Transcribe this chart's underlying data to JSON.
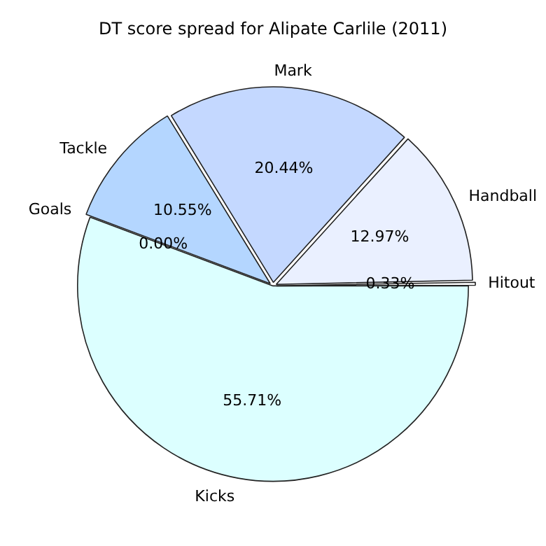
{
  "chart_data": {
    "type": "pie",
    "title": "DT score spread for Alipate Carlile (2011)",
    "categories": [
      "Kicks",
      "Goals",
      "Tackle",
      "Mark",
      "Handball",
      "Hitout"
    ],
    "values": [
      55.71,
      0.0,
      10.55,
      20.44,
      12.97,
      0.33
    ],
    "colors": [
      "#dcffff",
      "#d8e8ff",
      "#b4d6ff",
      "#c4d8ff",
      "#eaf0ff",
      "#ffffff"
    ],
    "value_labels": [
      "55.71%",
      "0.00%",
      "10.55%",
      "20.44%",
      "12.97%",
      "0.33%"
    ],
    "legend": false
  }
}
